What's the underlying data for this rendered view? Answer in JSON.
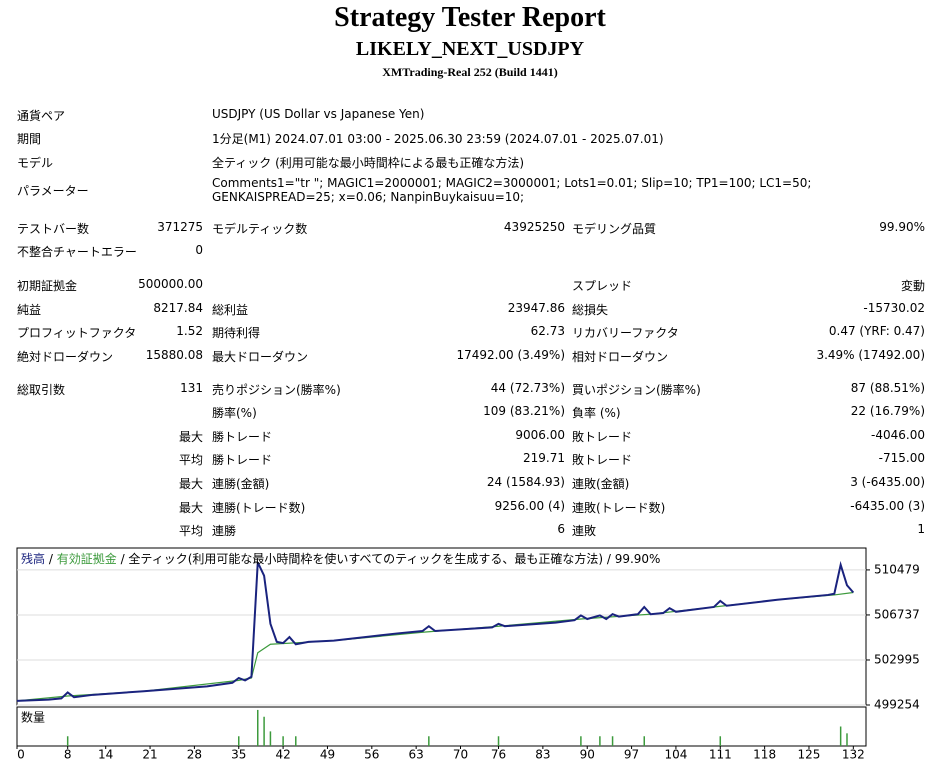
{
  "header": {
    "title": "Strategy Tester Report",
    "subtitle": "LIKELY_NEXT_USDJPY",
    "build": "XMTrading-Real 252 (Build 1441)"
  },
  "settings": [
    {
      "label": "通貨ペア",
      "value": "USDJPY (US Dollar vs Japanese Yen)"
    },
    {
      "label": "期間",
      "value": "1分足(M1) 2024.07.01 03:00 - 2025.06.30 23:59 (2024.07.01 - 2025.07.01)"
    },
    {
      "label": "モデル",
      "value": "全ティック (利用可能な最小時間枠による最も正確な方法)"
    },
    {
      "label": "パラメーター",
      "value": "Comments1=\"tr \"; MAGIC1=2000001; MAGIC2=3000001; Lots1=0.01; Slip=10; TP1=100; LC1=50; GENKAISPREAD=25; x=0.06; NanpinBuykaisuu=10;"
    }
  ],
  "stats": {
    "rows": [
      [
        "テストバー数",
        "371275",
        "モデルティック数",
        "43925250",
        "モデリング品質",
        "99.90%"
      ],
      [
        "不整合チャートエラー",
        "0",
        null,
        null,
        null,
        null
      ],
      [
        "初期証拠金",
        "500000.00",
        null,
        null,
        "スプレッド",
        "変動"
      ],
      [
        "純益",
        "8217.84",
        "総利益",
        "23947.86",
        "総損失",
        "-15730.02"
      ],
      [
        "プロフィットファクタ",
        "1.52",
        "期待利得",
        "62.73",
        "リカバリーファクタ",
        "0.47 (YRF: 0.47)"
      ],
      [
        "絶対ドローダウン",
        "15880.08",
        "最大ドローダウン",
        "17492.00 (3.49%)",
        "相対ドローダウン",
        "3.49% (17492.00)"
      ],
      [
        "総取引数",
        "131",
        "売りポジション(勝率%)",
        "44 (72.73%)",
        "買いポジション(勝率%)",
        "87 (88.51%)"
      ],
      [
        null,
        null,
        "勝率(%)",
        "109 (83.21%)",
        "負率 (%)",
        "22 (16.79%)"
      ],
      [
        null,
        "最大",
        "勝トレード",
        "9006.00",
        "敗トレード",
        "-4046.00"
      ],
      [
        null,
        "平均",
        "勝トレード",
        "219.71",
        "敗トレード",
        "-715.00"
      ],
      [
        null,
        "最大",
        "連勝(金額)",
        "24 (1584.93)",
        "連敗(金額)",
        "3 (-6435.00)"
      ],
      [
        null,
        "最大",
        "連勝(トレード数)",
        "9256.00 (4)",
        "連敗(トレード数)",
        "-6435.00 (3)"
      ],
      [
        null,
        "平均",
        "連勝",
        "6",
        "連敗",
        "1"
      ]
    ]
  },
  "chart_data": {
    "type": "line",
    "legend": {
      "balance": "残高",
      "separator": "/",
      "equity": "有効証拠金",
      "description": "/ 全ティック(利用可能な最小時間枠を使いすべてのティックを生成する、最も正確な方法) / 99.90%"
    },
    "xlim": [
      0,
      134
    ],
    "ylim": [
      499254,
      512300
    ],
    "yticks": [
      499254,
      502995,
      506737,
      510479
    ],
    "xticks": [
      0,
      8,
      14,
      21,
      28,
      35,
      42,
      49,
      56,
      63,
      70,
      76,
      83,
      90,
      97,
      104,
      111,
      118,
      125,
      132
    ],
    "series": [
      {
        "name": "残高",
        "color": "#1a237e",
        "x": [
          0,
          5,
          7,
          8,
          9,
          12,
          20,
          30,
          34,
          35,
          36,
          37,
          38,
          39,
          40,
          41,
          42,
          43,
          44,
          46,
          50,
          60,
          64,
          65,
          66,
          75,
          76,
          77,
          85,
          88,
          89,
          90,
          92,
          93,
          94,
          95,
          98,
          99,
          100,
          102,
          103,
          104,
          110,
          111,
          112,
          120,
          128,
          129,
          130,
          131,
          132
        ],
        "values": [
          499600,
          499700,
          499800,
          500300,
          499900,
          500100,
          500400,
          500800,
          501100,
          501500,
          501300,
          501600,
          511100,
          510000,
          506000,
          504500,
          504400,
          504900,
          504300,
          504500,
          504600,
          505200,
          505400,
          505800,
          505400,
          505700,
          506000,
          505800,
          506100,
          506300,
          506700,
          506400,
          506700,
          506400,
          506800,
          506600,
          506800,
          507400,
          506800,
          506900,
          507300,
          507000,
          507400,
          507900,
          507500,
          508000,
          508400,
          508500,
          510900,
          509200,
          508600
        ]
      },
      {
        "name": "有効証拠金",
        "color": "#3c9a3c",
        "x": [
          0,
          8,
          20,
          35,
          37,
          38,
          40,
          50,
          64,
          76,
          89,
          100,
          110,
          120,
          129,
          132
        ],
        "values": [
          499600,
          500000,
          500400,
          501300,
          501500,
          503600,
          504300,
          504600,
          505300,
          505800,
          506400,
          506800,
          507400,
          508000,
          508400,
          508600
        ]
      }
    ],
    "volume": {
      "label": "数量",
      "color": "#3c9a3c",
      "ylim": [
        0,
        4
      ],
      "x": [
        8,
        35,
        38,
        39,
        40,
        42,
        44,
        65,
        76,
        89,
        92,
        94,
        99,
        111,
        130,
        131
      ],
      "values": [
        1,
        1,
        3.7,
        3,
        1.5,
        1,
        1,
        1,
        1,
        1,
        1,
        1,
        1,
        1,
        2,
        1.3
      ]
    }
  }
}
